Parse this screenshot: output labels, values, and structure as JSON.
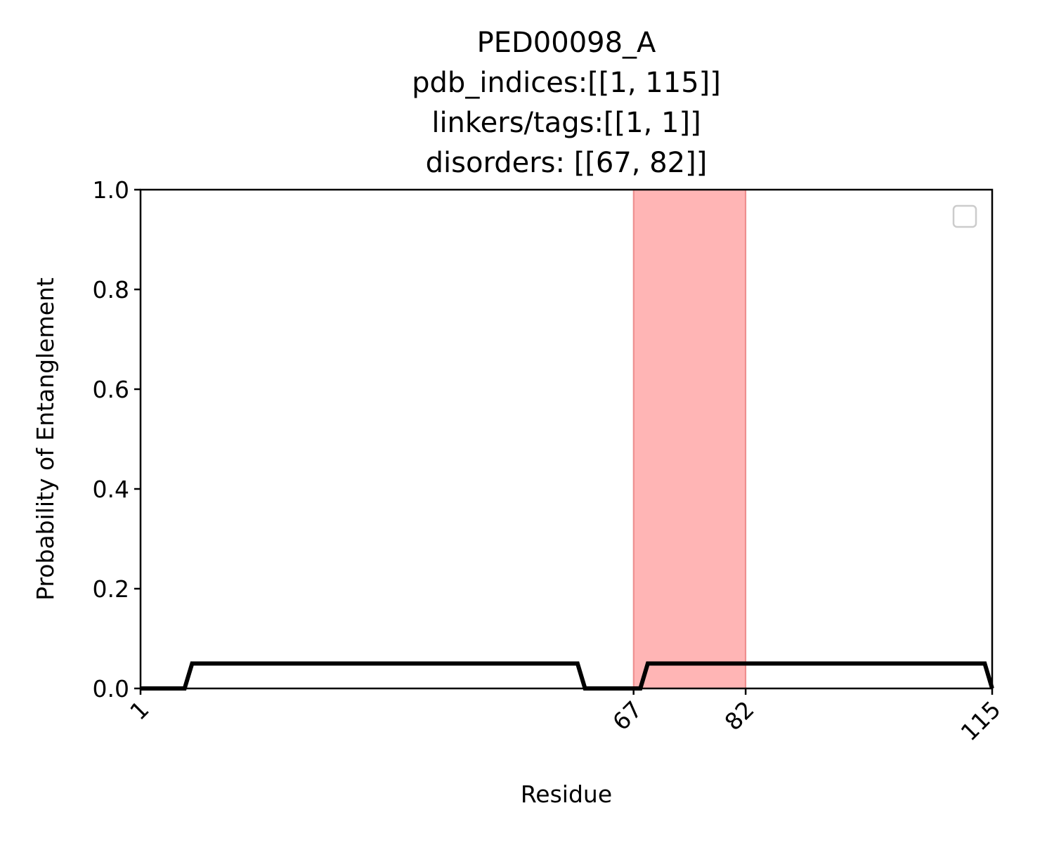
{
  "chart_data": {
    "type": "line",
    "title_lines": [
      "PED00098_A",
      "pdb_indices:[[1, 115]]",
      "linkers/tags:[[1, 1]]",
      "disorders: [[67, 82]]"
    ],
    "xlabel": "Residue",
    "ylabel": "Probability of Entanglement",
    "xlim": [
      1,
      115
    ],
    "ylim": [
      0,
      1.0
    ],
    "x_ticks": [
      1,
      67,
      82,
      115
    ],
    "x_tick_labels": [
      "1",
      "67",
      "82",
      "115"
    ],
    "y_ticks": [
      0.0,
      0.2,
      0.4,
      0.6,
      0.8,
      1.0
    ],
    "y_tick_labels": [
      "0.0",
      "0.2",
      "0.4",
      "0.6",
      "0.8",
      "1.0"
    ],
    "grid": false,
    "legend": {
      "placement": "upper-right",
      "entries": []
    },
    "shaded_regions": [
      {
        "x_start": 67,
        "x_end": 82,
        "color": "#ff6b6b",
        "opacity": 0.5
      }
    ],
    "series": [
      {
        "color": "#000000",
        "x": [
          1,
          6.9,
          7.9,
          59.5,
          60.5,
          67.9,
          68.9,
          114,
          115
        ],
        "y": [
          0,
          0,
          0.05,
          0.05,
          0,
          0,
          0.05,
          0.05,
          0
        ]
      }
    ]
  }
}
